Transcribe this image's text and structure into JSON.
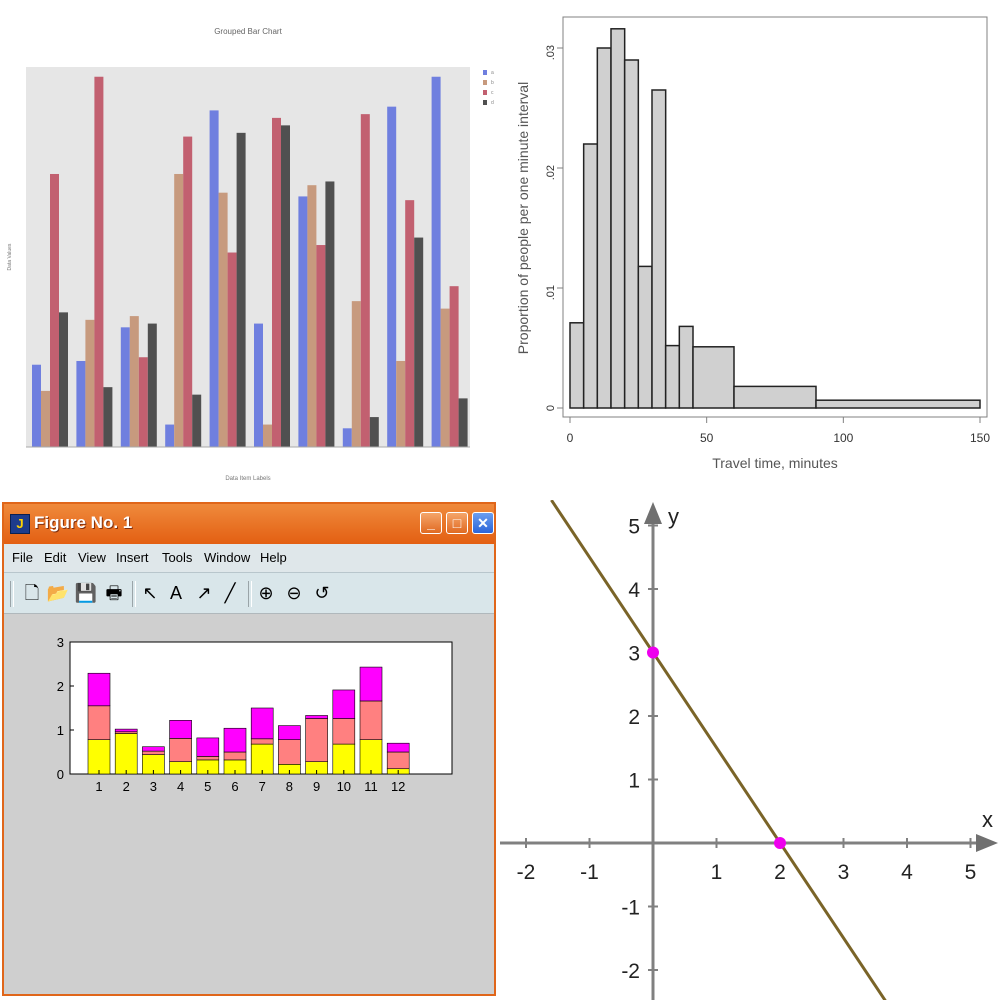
{
  "chart_data": [
    {
      "type": "bar",
      "title": "Grouped Bar Chart",
      "xlabel": "Data Item Labels",
      "ylabel": "Data Values",
      "ylim": [
        0,
        1
      ],
      "legend_position": "right",
      "series": [
        {
          "name": "a",
          "color": "#6f7fdf",
          "values": [
            0.22,
            0.23,
            0.32,
            0.06,
            0.9,
            0.33,
            0.67,
            0.05,
            0.91,
            0.99
          ]
        },
        {
          "name": "b",
          "color": "#c79a7e",
          "values": [
            0.15,
            0.34,
            0.35,
            0.73,
            0.68,
            0.06,
            0.7,
            0.39,
            0.23,
            0.37
          ]
        },
        {
          "name": "c",
          "color": "#c26070",
          "values": [
            0.73,
            0.99,
            0.24,
            0.83,
            0.52,
            0.88,
            0.54,
            0.89,
            0.66,
            0.43
          ]
        },
        {
          "name": "d",
          "color": "#505050",
          "values": [
            0.36,
            0.16,
            0.33,
            0.14,
            0.84,
            0.86,
            0.71,
            0.08,
            0.56,
            0.13
          ]
        }
      ]
    },
    {
      "type": "bar",
      "subtype": "histogram",
      "xlabel": "Travel time, minutes",
      "ylabel": "Proportion of people per one minute interval",
      "xlim": [
        0,
        150
      ],
      "ylim": [
        0,
        0.033
      ],
      "xticks": [
        "0",
        "50",
        "100",
        "150"
      ],
      "yticks": [
        "0",
        ".01",
        ".02",
        ".03"
      ],
      "bins": [
        {
          "x0": 0,
          "x1": 5,
          "value": 0.0071
        },
        {
          "x0": 5,
          "x1": 10,
          "value": 0.022
        },
        {
          "x0": 10,
          "x1": 15,
          "value": 0.03
        },
        {
          "x0": 15,
          "x1": 20,
          "value": 0.0316
        },
        {
          "x0": 20,
          "x1": 25,
          "value": 0.029
        },
        {
          "x0": 25,
          "x1": 30,
          "value": 0.0118
        },
        {
          "x0": 30,
          "x1": 35,
          "value": 0.0265
        },
        {
          "x0": 35,
          "x1": 40,
          "value": 0.0052
        },
        {
          "x0": 40,
          "x1": 45,
          "value": 0.0068
        },
        {
          "x0": 45,
          "x1": 60,
          "value": 0.0051
        },
        {
          "x0": 60,
          "x1": 90,
          "value": 0.0018
        },
        {
          "x0": 90,
          "x1": 150,
          "value": 0.00065
        }
      ]
    },
    {
      "type": "bar",
      "subtype": "stacked",
      "categories": [
        "1",
        "2",
        "3",
        "4",
        "5",
        "6",
        "7",
        "8",
        "9",
        "10",
        "11",
        "12"
      ],
      "ylim": [
        0,
        3
      ],
      "yticks": [
        "0",
        "1",
        "2",
        "3"
      ],
      "series": [
        {
          "color": "#ffff00",
          "values": [
            0.78,
            0.92,
            0.44,
            0.28,
            0.32,
            0.32,
            0.68,
            0.22,
            0.28,
            0.68,
            0.78,
            0.12
          ]
        },
        {
          "color": "#ff8080",
          "values": [
            0.77,
            0.04,
            0.08,
            0.53,
            0.08,
            0.18,
            0.12,
            0.56,
            0.98,
            0.58,
            0.88,
            0.38
          ]
        },
        {
          "color": "#ff00ff",
          "values": [
            0.74,
            0.06,
            0.1,
            0.41,
            0.42,
            0.54,
            0.7,
            0.32,
            0.07,
            0.65,
            0.77,
            0.2
          ]
        }
      ]
    },
    {
      "type": "line",
      "xlabel": "x",
      "ylabel": "y",
      "xlim": [
        -2.3,
        5.3
      ],
      "ylim": [
        -2.3,
        5.3
      ],
      "xticks": [
        "-2",
        "-1",
        "1",
        "2",
        "3",
        "4",
        "5"
      ],
      "yticks": [
        "-2",
        "-1",
        "1",
        "2",
        "3",
        "4",
        "5"
      ],
      "series": [
        {
          "color": "#7a6428",
          "points": [
            [
              -1.6,
              5.4
            ],
            [
              3.67,
              -2.5
            ]
          ]
        }
      ],
      "points": [
        {
          "x": 0,
          "y": 3,
          "color": "#ee00ee"
        },
        {
          "x": 2,
          "y": 0,
          "color": "#ee00ee"
        }
      ]
    }
  ],
  "grouped": {
    "title": "Grouped Bar Chart",
    "xlabel": "Data Item Labels",
    "ylabel": "Data Values",
    "legend": [
      "a",
      "b",
      "c",
      "d"
    ]
  },
  "histogram": {
    "xlabel": "Travel time, minutes",
    "ylabel": "Proportion of people per one minute interval"
  },
  "window": {
    "title": "Figure No. 1",
    "menus": [
      "File",
      "Edit",
      "View",
      "Insert",
      "Tools",
      "Window",
      "Help"
    ],
    "tools": [
      {
        "name": "new-file-icon",
        "glyph": "🗋"
      },
      {
        "name": "open-folder-icon",
        "glyph": "📂"
      },
      {
        "name": "save-icon",
        "glyph": "💾"
      },
      {
        "name": "print-icon",
        "glyph": "🖶"
      },
      {
        "name": "arrow-pointer-icon",
        "glyph": "↖"
      },
      {
        "name": "insert-text-icon",
        "glyph": "A"
      },
      {
        "name": "insert-arrow-icon",
        "glyph": "↗"
      },
      {
        "name": "insert-line-icon",
        "glyph": "╱"
      },
      {
        "name": "zoom-in-icon",
        "glyph": "⊕"
      },
      {
        "name": "zoom-out-icon",
        "glyph": "⊖"
      },
      {
        "name": "rotate-icon",
        "glyph": "↺"
      }
    ]
  }
}
